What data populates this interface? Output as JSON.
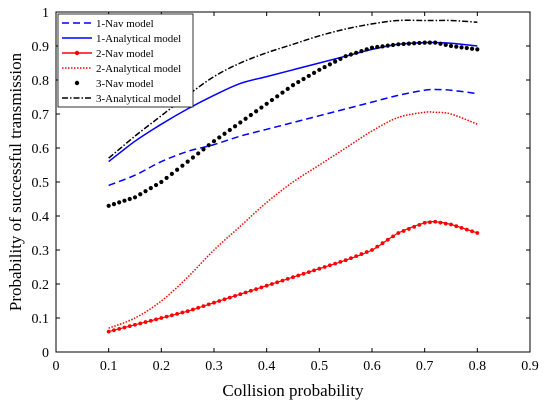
{
  "chart_data": {
    "type": "line",
    "title": "",
    "xlabel": "Collision probability",
    "ylabel": "Probability of successful transmission",
    "xlim": [
      0,
      0.9
    ],
    "ylim": [
      0,
      1
    ],
    "xticks": [
      0,
      0.1,
      0.2,
      0.3,
      0.4,
      0.5,
      0.6,
      0.7,
      0.8,
      0.9
    ],
    "xtick_labels": [
      "0",
      "0.1",
      "0.2",
      "0.3",
      "0.4",
      "0.5",
      "0.6",
      "0.7",
      "0.8",
      "0.9"
    ],
    "yticks": [
      0,
      0.1,
      0.2,
      0.3,
      0.4,
      0.5,
      0.6,
      0.7,
      0.8,
      0.9,
      1
    ],
    "ytick_labels": [
      "0",
      "0.1",
      "0.2",
      "0.3",
      "0.4",
      "0.5",
      "0.6",
      "0.7",
      "0.8",
      "0.9",
      "1"
    ],
    "grid": false,
    "legend_position": "top-left",
    "x": [
      0.1,
      0.15,
      0.2,
      0.25,
      0.3,
      0.35,
      0.4,
      0.45,
      0.5,
      0.55,
      0.6,
      0.65,
      0.7,
      0.72,
      0.75,
      0.8
    ],
    "series": [
      {
        "name": "1-Nav model",
        "color": "#0000ff",
        "style": "dashed",
        "values": [
          0.49,
          0.52,
          0.56,
          0.59,
          0.61,
          0.635,
          0.655,
          0.675,
          0.695,
          0.715,
          0.735,
          0.755,
          0.77,
          0.772,
          0.77,
          0.76
        ]
      },
      {
        "name": "1-Analytical model",
        "color": "#0000ff",
        "style": "solid",
        "values": [
          0.56,
          0.62,
          0.67,
          0.715,
          0.755,
          0.79,
          0.81,
          0.83,
          0.85,
          0.87,
          0.89,
          0.905,
          0.91,
          0.91,
          0.908,
          0.9
        ]
      },
      {
        "name": "2-Nav model",
        "color": "#ff0000",
        "style": "solid-markers",
        "values": [
          0.06,
          0.08,
          0.1,
          0.12,
          0.145,
          0.17,
          0.195,
          0.22,
          0.245,
          0.27,
          0.3,
          0.35,
          0.38,
          0.383,
          0.375,
          0.35
        ]
      },
      {
        "name": "2-Analytical model",
        "color": "#ff0000",
        "style": "dotted",
        "values": [
          0.07,
          0.1,
          0.15,
          0.22,
          0.3,
          0.37,
          0.44,
          0.5,
          0.55,
          0.6,
          0.65,
          0.69,
          0.705,
          0.705,
          0.7,
          0.67
        ]
      },
      {
        "name": "3-Nav model",
        "color": "#000000",
        "style": "markers",
        "values": [
          0.43,
          0.455,
          0.5,
          0.56,
          0.62,
          0.675,
          0.73,
          0.785,
          0.83,
          0.87,
          0.895,
          0.905,
          0.91,
          0.91,
          0.9,
          0.89
        ]
      },
      {
        "name": "3-Analytical model",
        "color": "#000000",
        "style": "dashdot",
        "values": [
          0.57,
          0.635,
          0.695,
          0.755,
          0.81,
          0.85,
          0.88,
          0.905,
          0.93,
          0.95,
          0.965,
          0.975,
          0.975,
          0.975,
          0.975,
          0.97
        ]
      }
    ]
  }
}
